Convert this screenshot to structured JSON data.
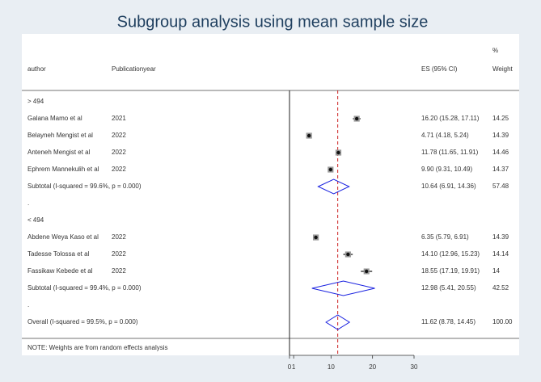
{
  "chart_data": {
    "type": "forest",
    "title": "Subgroup analysis using mean sample size",
    "columns": {
      "author": "author",
      "year": "Publicationyear",
      "es": "ES (95% CI)",
      "weight_top": "%",
      "weight": "Weight"
    },
    "xlim": [
      0,
      30
    ],
    "xticks": [
      0,
      1,
      10,
      20,
      30
    ],
    "rows": [
      {
        "kind": "group",
        "label": "> 494"
      },
      {
        "kind": "study",
        "label": "Galana Mamo et al",
        "year": "2021",
        "es": 16.2,
        "ci": [
          15.28,
          17.11
        ],
        "es_label": "16.20 (15.28, 17.11)",
        "weight": 14.25
      },
      {
        "kind": "study",
        "label": "Belayneh Mengist  et al",
        "year": "2022",
        "es": 4.71,
        "ci": [
          4.18,
          5.24
        ],
        "es_label": "4.71 (4.18, 5.24)",
        "weight": 14.39
      },
      {
        "kind": "study",
        "label": "Anteneh Mengist et al",
        "year": "2022",
        "es": 11.78,
        "ci": [
          11.65,
          11.91
        ],
        "es_label": "11.78 (11.65, 11.91)",
        "weight": 14.46
      },
      {
        "kind": "study",
        "label": "Ephrem Mannekulih et al",
        "year": "2022",
        "es": 9.9,
        "ci": [
          9.31,
          10.49
        ],
        "es_label": "9.90 (9.31, 10.49)",
        "weight": 14.37
      },
      {
        "kind": "subtotal",
        "label": "Subtotal  (I-squared = 99.6%, p = 0.000)",
        "es": 10.64,
        "ci": [
          6.91,
          14.36
        ],
        "es_label": "10.64 (6.91, 14.36)",
        "weight": 57.48
      },
      {
        "kind": "blank",
        "label": "."
      },
      {
        "kind": "group",
        "label": "< 494"
      },
      {
        "kind": "study",
        "label": "Abdene Weya Kaso et al",
        "year": "2022",
        "es": 6.35,
        "ci": [
          5.79,
          6.91
        ],
        "es_label": "6.35 (5.79, 6.91)",
        "weight": 14.39
      },
      {
        "kind": "study",
        "label": "Tadesse Tolossa et al",
        "year": "2022",
        "es": 14.1,
        "ci": [
          12.96,
          15.23
        ],
        "es_label": "14.10 (12.96, 15.23)",
        "weight": 14.14
      },
      {
        "kind": "study",
        "label": "Fassikaw Kebede et al",
        "year": "2022",
        "es": 18.55,
        "ci": [
          17.19,
          19.91
        ],
        "es_label": "18.55 (17.19, 19.91)",
        "weight": 14.0
      },
      {
        "kind": "subtotal",
        "label": "Subtotal  (I-squared = 99.4%, p = 0.000)",
        "es": 12.98,
        "ci": [
          5.41,
          20.55
        ],
        "es_label": "12.98 (5.41, 20.55)",
        "weight": 42.52
      },
      {
        "kind": "blank",
        "label": "."
      },
      {
        "kind": "overall",
        "label": "Overall  (I-squared = 99.5%, p = 0.000)",
        "es": 11.62,
        "ci": [
          8.78,
          14.45
        ],
        "es_label": "11.62 (8.78, 14.45)",
        "weight": 100,
        "weight_label": "100.00"
      }
    ],
    "note": "NOTE: Weights are from random effects analysis"
  }
}
